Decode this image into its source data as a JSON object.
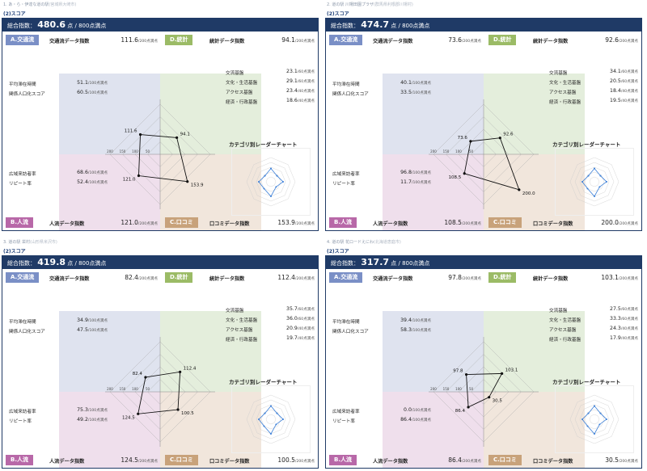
{
  "common": {
    "section": "(2)スコア",
    "total_label": "総合指数：",
    "total_unit": "点 / 800点満点",
    "labels": {
      "A": "A.交通流",
      "D": "D.統計",
      "B": "B.人流",
      "C": "C.口コミ"
    },
    "A_title": "交通流データ指数",
    "D_title": "統計データ指数",
    "B_title": "人流データ指数",
    "C_title": "口コミデータ指数",
    "per200": "/200点満点",
    "per100": "/100点満点",
    "per60": "/60点満点",
    "per40": "/40点満点",
    "a_items": [
      "平均滞在時間",
      "関係人口化スコア"
    ],
    "b_items": [
      "広域来訪者率",
      "リピート率"
    ],
    "d_items": [
      "交流基盤",
      "文化・生活基盤",
      "アクセス基盤",
      "経済・行政基盤"
    ],
    "mini_title": "カテゴリ別レーダーチャート",
    "axis_ticks": [
      "200",
      "150",
      "100",
      "50"
    ]
  },
  "panels": [
    {
      "title": "1. あ・ら・伊達な道の駅",
      "subtitle": "(宮城県大崎市)",
      "total": "480.6",
      "A": "111.6",
      "D": "94.1",
      "B": "121.0",
      "C": "153.9",
      "a_vals": [
        "51.1",
        "60.5"
      ],
      "b_vals": [
        "68.6",
        "52.4"
      ],
      "d_vals": [
        "23.1",
        "29.1",
        "23.4",
        "18.6"
      ]
    },
    {
      "title": "2. 道の駅 川場田園プラザ",
      "subtitle": "(群馬県利根郡川場村)",
      "total": "474.7",
      "A": "73.6",
      "D": "92.6",
      "B": "108.5",
      "C": "200.0",
      "a_vals": [
        "40.1",
        "33.5"
      ],
      "b_vals": [
        "96.8",
        "11.7"
      ],
      "d_vals": [
        "34.1",
        "20.5",
        "18.4",
        "19.5"
      ]
    },
    {
      "title": "3. 道の駅 栄村",
      "subtitle": "(山形県米沢市)",
      "total": "419.8",
      "A": "82.4",
      "D": "112.4",
      "B": "124.5",
      "C": "100.5",
      "a_vals": [
        "34.9",
        "47.5"
      ],
      "b_vals": [
        "75.3",
        "49.2"
      ],
      "d_vals": [
        "35.7",
        "36.0",
        "20.9",
        "19.7"
      ]
    },
    {
      "title": "4. 道の駅 花ロードえにわ",
      "subtitle": "(北海道恵庭市)",
      "total": "317.7",
      "A": "97.8",
      "D": "103.1",
      "B": "86.4",
      "C": "30.5",
      "a_vals": [
        "39.4",
        "58.3"
      ],
      "b_vals": [
        "0.0",
        "86.4"
      ],
      "d_vals": [
        "27.5",
        "33.3",
        "24.3",
        "17.9"
      ]
    }
  ],
  "chart_data": [
    {
      "type": "radar",
      "categories": [
        "A.交通流",
        "D.統計",
        "C.口コミ",
        "B.人流"
      ],
      "values": [
        111.6,
        94.1,
        153.9,
        121.0
      ],
      "ylim": [
        0,
        200
      ]
    },
    {
      "type": "radar",
      "categories": [
        "A.交通流",
        "D.統計",
        "C.口コミ",
        "B.人流"
      ],
      "values": [
        73.6,
        92.6,
        200.0,
        108.5
      ],
      "ylim": [
        0,
        200
      ]
    },
    {
      "type": "radar",
      "categories": [
        "A.交通流",
        "D.統計",
        "C.口コミ",
        "B.人流"
      ],
      "values": [
        82.4,
        112.4,
        100.5,
        124.5
      ],
      "ylim": [
        0,
        200
      ]
    },
    {
      "type": "radar",
      "categories": [
        "A.交通流",
        "D.統計",
        "C.口コミ",
        "B.人流"
      ],
      "values": [
        97.8,
        103.1,
        30.5,
        86.4
      ],
      "ylim": [
        0,
        200
      ]
    }
  ],
  "colors": {
    "header": "#1f3a66",
    "A": "#7a8fc6",
    "D": "#9bbb66",
    "B": "#b868a8",
    "C": "#c8a27a",
    "mini_line": "#3b7fd8"
  }
}
